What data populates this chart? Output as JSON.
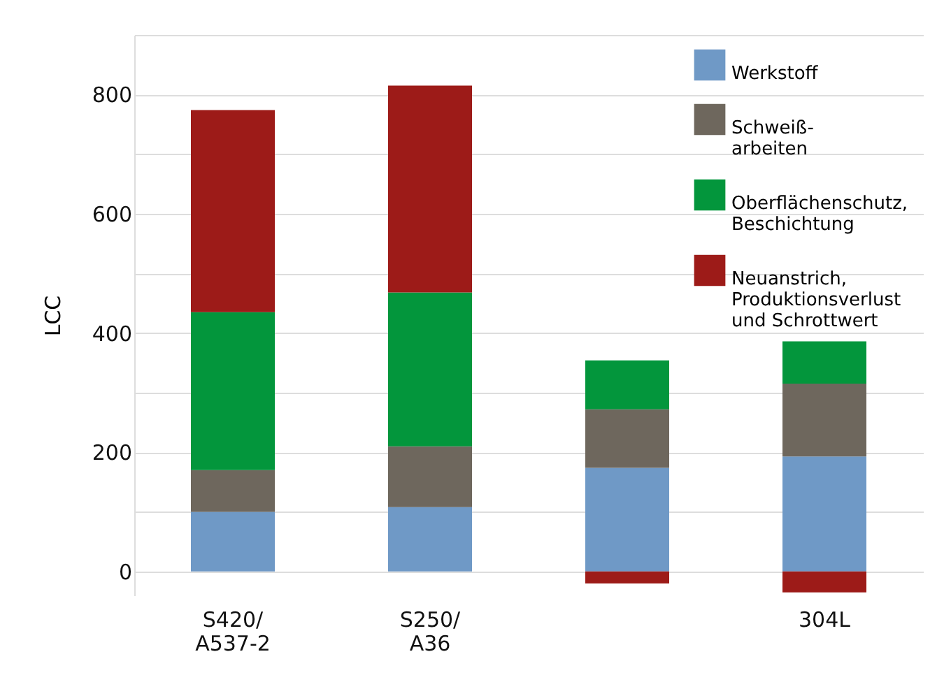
{
  "chart_data": {
    "type": "bar",
    "stacked": true,
    "ylabel": "LCC",
    "categories": [
      "S420/\nA537-2",
      "S250/\nA36",
      null,
      "304L"
    ],
    "series": [
      {
        "name": "Werkstoff",
        "color": "#6f99c6",
        "values": [
          100,
          108,
          174,
          193
        ]
      },
      {
        "name": "Schweiß-\narbeiten",
        "color": "#6e675d",
        "values": [
          70,
          102,
          98,
          122
        ]
      },
      {
        "name": "Oberflächenschutz,\nBeschichtung",
        "color": "#03963c",
        "values": [
          265,
          258,
          82,
          71
        ]
      },
      {
        "name": "Neuanstrich,\nProduktionsverlust\nund Schrottwert",
        "color": "#9d1b18",
        "values": [
          339,
          347,
          -20,
          -35
        ]
      }
    ],
    "ylim": [
      -40,
      900
    ],
    "yticks": [
      0,
      {
        "value": 100,
        "label": null
      },
      200,
      {
        "value": 300,
        "label": null
      },
      400,
      {
        "value": 500,
        "label": null
      },
      600,
      {
        "value": 700,
        "label": null
      },
      800,
      {
        "value": 900,
        "label": null
      }
    ],
    "grid": "y",
    "legend": "top right"
  }
}
